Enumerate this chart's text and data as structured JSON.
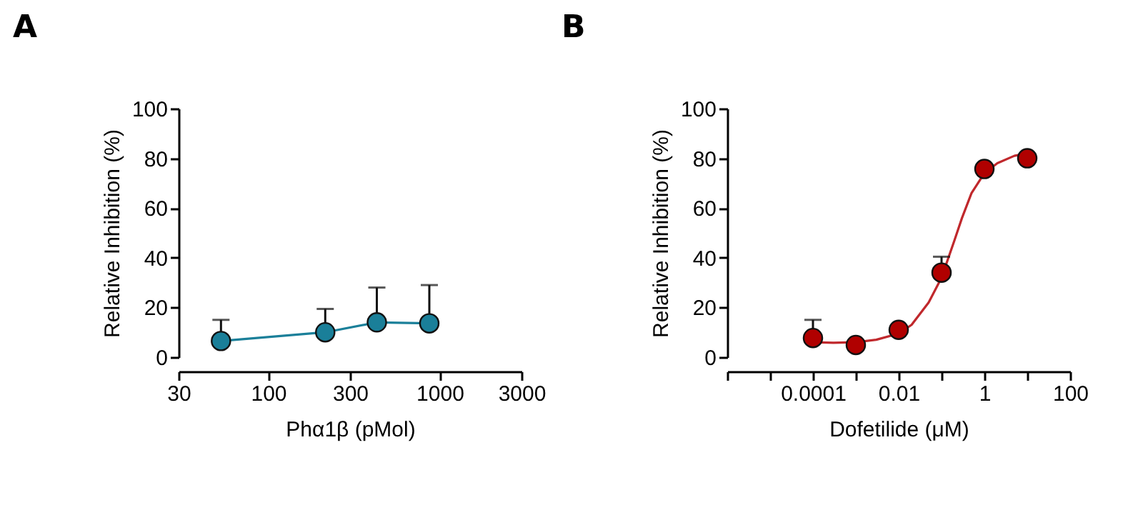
{
  "chart_data": [
    {
      "type": "line",
      "title": "A",
      "xlabel": "Phα1β (pMol)",
      "ylabel": "Relative Inhibition (%)",
      "log": "x",
      "marker": "circle",
      "x": [
        53,
        215,
        430,
        870
      ],
      "series": [
        {
          "color": "#1a7f99",
          "values": [
            6.5,
            10,
            14,
            13.6
          ],
          "errors": [
            [
              6.5,
              15
            ],
            [
              10,
              19.4
            ],
            [
              14,
              28
            ],
            [
              13.6,
              29
            ]
          ]
        }
      ],
      "xlim": [
        30,
        3000
      ],
      "xticks": [
        30,
        100,
        300,
        1000,
        3000
      ],
      "ylim": [
        0,
        100
      ],
      "yticks": [
        0,
        20,
        40,
        60,
        80,
        100
      ]
    },
    {
      "type": "scatter",
      "title": "B",
      "xlabel": "Dofetilide (μM)",
      "ylabel": "Relative Inhibition (%)",
      "log": "x",
      "series": [
        {
          "color": "#b00000",
          "marker": "circle",
          "x": [
            0.0001,
            0.001,
            0.01,
            0.1,
            1,
            10
          ],
          "values": [
            7.7,
            4.9,
            11,
            34,
            75.7,
            80
          ],
          "errors": [
            [
              7.7,
              15
            ],
            null,
            null,
            [
              34,
              40.4
            ],
            null,
            null
          ]
        },
        {
          "type": "line",
          "color": "#c0282c",
          "x": [
            0.0001,
            0.0003,
            0.001,
            0.003,
            0.01,
            0.02,
            0.05,
            0.1,
            0.2,
            0.3,
            0.5,
            1,
            2,
            5,
            10
          ],
          "values": [
            6,
            5.8,
            6,
            7,
            9.5,
            13,
            22,
            32,
            47,
            56,
            66,
            74,
            78,
            81,
            82
          ]
        }
      ],
      "xlim": [
        1e-06,
        100
      ],
      "xticks": [
        {
          "value": 1e-06,
          "label": null
        },
        {
          "value": 1e-05,
          "label": null
        },
        {
          "value": 0.0001,
          "label": "0.0001"
        },
        {
          "value": 0.001,
          "label": null
        },
        {
          "value": 0.01,
          "label": "0.01"
        },
        {
          "value": 0.1,
          "label": null
        },
        {
          "value": 1,
          "label": "1"
        },
        {
          "value": 10,
          "label": null
        },
        {
          "value": 100,
          "label": "100"
        }
      ],
      "ylim": [
        0,
        100
      ],
      "yticks": [
        0,
        20,
        40,
        60,
        80,
        100
      ]
    }
  ]
}
